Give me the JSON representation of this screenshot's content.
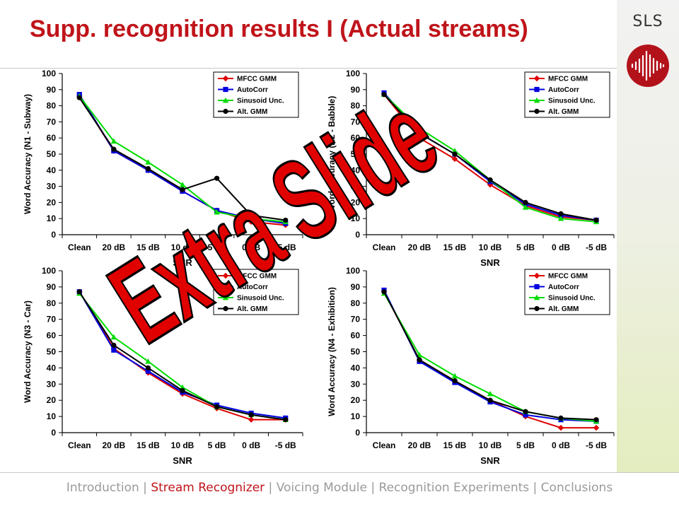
{
  "slide": {
    "title": "Supp. recognition results I (Actual streams)",
    "brand": "SLS",
    "watermark": "Extra Slide"
  },
  "footer": {
    "items": [
      "Introduction",
      "Stream Recognizer",
      "Voicing Module",
      "Recognition Experiments",
      "Conclusions"
    ],
    "current_index": 1,
    "separator": "|"
  },
  "colors": {
    "title": "#c0141a",
    "series": [
      "#e00000",
      "#0000e0",
      "#00dd00",
      "#000000"
    ],
    "watermark_fill": "#e00000"
  },
  "chart_data": [
    {
      "type": "line",
      "ylabel": "Word Accuracy (N1 - Subway)",
      "xlabel": "SNR",
      "categories": [
        "Clean",
        "20 dB",
        "15 dB",
        "10 dB",
        "5 dB",
        "0 dB",
        "-5 dB"
      ],
      "ylim": [
        0,
        100
      ],
      "ytick_step": 10,
      "grid": false,
      "legend": "top-right",
      "series": [
        {
          "name": "MFCC GMM",
          "values": [
            86,
            52,
            40,
            27,
            15,
            8,
            6
          ]
        },
        {
          "name": "AutoCorr",
          "values": [
            87,
            52,
            40,
            27,
            15,
            10,
            7
          ]
        },
        {
          "name": "Sinusoid Unc.",
          "values": [
            86,
            58,
            45,
            31,
            14,
            10,
            8
          ]
        },
        {
          "name": "Alt. GMM",
          "values": [
            85,
            53,
            41,
            28,
            35,
            12,
            9
          ]
        }
      ]
    },
    {
      "type": "line",
      "ylabel": "Word Accuracy (N2 - Babble)",
      "xlabel": "SNR",
      "categories": [
        "Clean",
        "20 dB",
        "15 dB",
        "10 dB",
        "5 dB",
        "0 dB",
        "-5 dB"
      ],
      "ylim": [
        0,
        100
      ],
      "ytick_step": 10,
      "grid": false,
      "legend": "top-right",
      "series": [
        {
          "name": "MFCC GMM",
          "values": [
            87,
            60,
            47,
            31,
            18,
            11,
            9
          ]
        },
        {
          "name": "AutoCorr",
          "values": [
            88,
            63,
            50,
            33,
            19,
            12,
            9
          ]
        },
        {
          "name": "Sinusoid Unc.",
          "values": [
            87,
            66,
            52,
            34,
            17,
            10,
            8
          ]
        },
        {
          "name": "Alt. GMM",
          "values": [
            87,
            63,
            50,
            34,
            20,
            13,
            9
          ]
        }
      ]
    },
    {
      "type": "line",
      "ylabel": "Word Accuracy (N3 - Car)",
      "xlabel": "SNR",
      "categories": [
        "Clean",
        "20 dB",
        "15 dB",
        "10 dB",
        "5 dB",
        "0 dB",
        "-5 dB"
      ],
      "ylim": [
        0,
        100
      ],
      "ytick_step": 10,
      "grid": false,
      "legend": "top-right",
      "series": [
        {
          "name": "MFCC GMM",
          "values": [
            87,
            52,
            37,
            24,
            15,
            8,
            8
          ]
        },
        {
          "name": "AutoCorr",
          "values": [
            87,
            51,
            38,
            25,
            17,
            12,
            9
          ]
        },
        {
          "name": "Sinusoid Unc.",
          "values": [
            86,
            59,
            44,
            28,
            16,
            11,
            8
          ]
        },
        {
          "name": "Alt. GMM",
          "values": [
            87,
            54,
            40,
            26,
            16,
            11,
            8
          ]
        }
      ]
    },
    {
      "type": "line",
      "ylabel": "Word Accuracy (N4 - Exhibition)",
      "xlabel": "SNR",
      "categories": [
        "Clean",
        "20 dB",
        "15 dB",
        "10 dB",
        "5 dB",
        "0 dB",
        "-5 dB"
      ],
      "ylim": [
        0,
        100
      ],
      "ytick_step": 10,
      "grid": false,
      "legend": "top-right",
      "series": [
        {
          "name": "MFCC GMM",
          "values": [
            87,
            45,
            32,
            20,
            10,
            3,
            3
          ]
        },
        {
          "name": "AutoCorr",
          "values": [
            88,
            44,
            31,
            19,
            11,
            8,
            7
          ]
        },
        {
          "name": "Sinusoid Unc.",
          "values": [
            86,
            48,
            35,
            24,
            13,
            9,
            7
          ]
        },
        {
          "name": "Alt. GMM",
          "values": [
            87,
            45,
            32,
            20,
            13,
            9,
            8
          ]
        }
      ]
    }
  ]
}
